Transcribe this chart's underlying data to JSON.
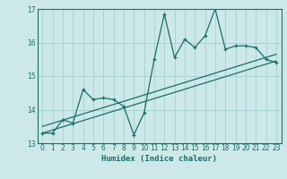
{
  "title": "",
  "xlabel": "Humidex (Indice chaleur)",
  "ylabel": "",
  "bg_color": "#cce8e8",
  "grid_color": "#aad4d4",
  "line_color": "#1a6e6a",
  "xlim": [
    -0.5,
    23.5
  ],
  "ylim": [
    13,
    17
  ],
  "yticks": [
    13,
    14,
    15,
    16,
    17
  ],
  "xticks": [
    0,
    1,
    2,
    3,
    4,
    5,
    6,
    7,
    8,
    9,
    10,
    11,
    12,
    13,
    14,
    15,
    16,
    17,
    18,
    19,
    20,
    21,
    22,
    23
  ],
  "data_x": [
    0,
    1,
    2,
    3,
    4,
    5,
    6,
    7,
    8,
    9,
    10,
    11,
    12,
    13,
    14,
    15,
    16,
    17,
    18,
    19,
    20,
    21,
    22,
    23
  ],
  "data_y": [
    13.3,
    13.3,
    13.7,
    13.6,
    14.6,
    14.3,
    14.35,
    14.3,
    14.1,
    13.25,
    13.9,
    15.5,
    16.85,
    15.55,
    16.1,
    15.85,
    16.2,
    17.0,
    15.8,
    15.9,
    15.9,
    15.85,
    15.5,
    15.4
  ],
  "trend_x": [
    0,
    23
  ],
  "trend_y": [
    13.3,
    15.45
  ],
  "trend2_x": [
    0,
    23
  ],
  "trend2_y": [
    13.5,
    15.65
  ]
}
